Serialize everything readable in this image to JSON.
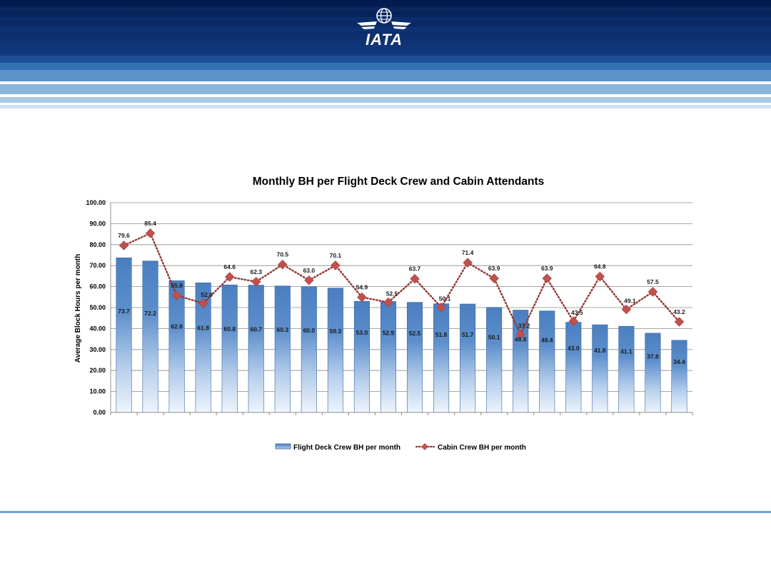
{
  "header": {
    "logo_text": "IATA"
  },
  "chart_data": {
    "type": "bar",
    "title": "Monthly BH per Flight Deck Crew and Cabin Attendants",
    "xlabel": "",
    "ylabel": "Average Block Hours per month",
    "ylim": [
      0,
      100
    ],
    "yticks": [
      "0.00",
      "10.00",
      "20.00",
      "30.00",
      "40.00",
      "50.00",
      "60.00",
      "70.00",
      "80.00",
      "90.00",
      "100.00"
    ],
    "grid": true,
    "legend_position": "bottom",
    "categories": [
      "",
      "",
      "",
      "",
      "",
      "",
      "",
      "",
      "",
      "",
      "",
      "",
      "",
      "",
      "",
      "",
      "",
      "",
      "",
      "",
      "",
      ""
    ],
    "series": [
      {
        "name": "Flight Deck Crew BH per month",
        "type": "bar",
        "color": "#4f81bd",
        "values": [
          73.7,
          72.2,
          62.8,
          61.8,
          60.8,
          60.7,
          60.3,
          60.0,
          59.3,
          53.0,
          52.9,
          52.5,
          51.8,
          51.7,
          50.1,
          48.8,
          48.4,
          43.0,
          41.8,
          41.1,
          37.8,
          34.4
        ]
      },
      {
        "name": "Cabin Crew BH per month",
        "type": "line",
        "color": "#c0504d",
        "line_color": "#943634",
        "values": [
          79.6,
          85.4,
          55.8,
          52.0,
          64.6,
          62.3,
          70.5,
          63.0,
          70.1,
          54.9,
          52.5,
          63.7,
          50.1,
          71.4,
          63.9,
          37.2,
          63.9,
          43.5,
          64.8,
          49.1,
          57.5,
          43.2
        ]
      }
    ]
  }
}
